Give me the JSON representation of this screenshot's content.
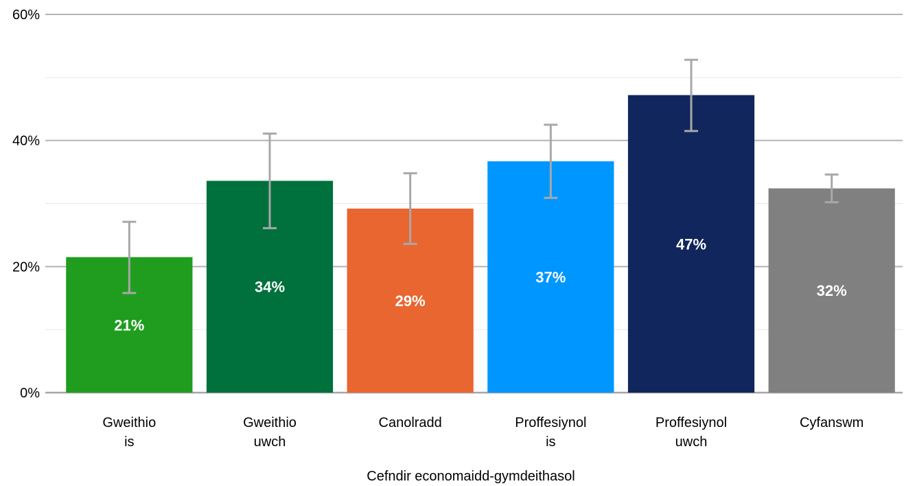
{
  "chart_data": {
    "type": "bar",
    "categories": [
      [
        "Gweithio",
        "is"
      ],
      [
        "Gweithio",
        "uwch"
      ],
      [
        "Canolradd"
      ],
      [
        "Proffesiynol",
        "is"
      ],
      [
        "Proffesiynol",
        "uwch"
      ],
      [
        "Cyfanswm"
      ]
    ],
    "values": [
      21.5,
      33.6,
      29.2,
      36.7,
      47.2,
      32.4
    ],
    "data_labels": [
      "21%",
      "34%",
      "29%",
      "37%",
      "47%",
      "32%"
    ],
    "error_low": [
      15.8,
      26.1,
      23.6,
      30.9,
      41.5,
      30.2
    ],
    "error_high": [
      27.1,
      41.1,
      34.8,
      42.5,
      52.8,
      34.6
    ],
    "colors": [
      "#209d1f",
      "#00703c",
      "#e96630",
      "#0096ff",
      "#10265c",
      "#808080"
    ],
    "error_color": "#a8a8a8",
    "ylim": [
      0,
      60
    ],
    "yticks": [
      0,
      20,
      40,
      60
    ],
    "ytick_labels": [
      "0%",
      "20%",
      "40%",
      "60%"
    ],
    "minor_gridlines": [
      10,
      30,
      50
    ],
    "grid": true,
    "xlabel": "Cefndir economaidd-gymdeithasol",
    "ylabel": "",
    "title": ""
  }
}
